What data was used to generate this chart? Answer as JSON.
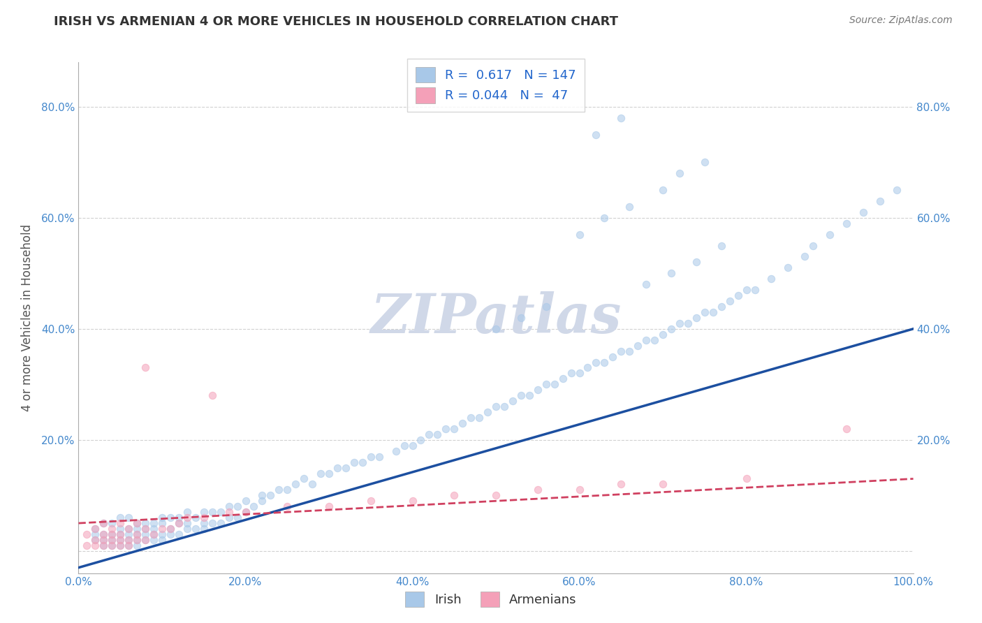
{
  "title": "IRISH VS ARMENIAN 4 OR MORE VEHICLES IN HOUSEHOLD CORRELATION CHART",
  "source": "Source: ZipAtlas.com",
  "ylabel": "4 or more Vehicles in Household",
  "xlabel_irish": "Irish",
  "xlabel_armenian": "Armenians",
  "legend_irish_R": "0.617",
  "legend_irish_N": "147",
  "legend_armenian_R": "0.044",
  "legend_armenian_N": "47",
  "irish_color": "#a8c8e8",
  "armenian_color": "#f4a0b8",
  "irish_line_color": "#1c4fa0",
  "armenian_line_color": "#d04060",
  "watermark": "ZIPatlas",
  "xlim": [
    0.0,
    1.0
  ],
  "ylim": [
    -0.04,
    0.88
  ],
  "xticks": [
    0.0,
    0.2,
    0.4,
    0.6,
    0.8,
    1.0
  ],
  "yticks": [
    0.0,
    0.2,
    0.4,
    0.6,
    0.8
  ],
  "xtick_labels": [
    "0.0%",
    "20.0%",
    "40.0%",
    "60.0%",
    "80.0%",
    "100.0%"
  ],
  "ytick_labels": [
    "",
    "20.0%",
    "40.0%",
    "60.0%",
    "80.0%"
  ],
  "background_color": "#ffffff",
  "grid_color": "#cccccc",
  "title_color": "#333333",
  "axis_label_color": "#555555",
  "tick_label_color": "#4488cc",
  "watermark_color": "#d0d8e8",
  "marker_size": 55,
  "marker_alpha": 0.55,
  "legend_text_color": "#2266cc",
  "irish_scatter_x": [
    0.02,
    0.02,
    0.02,
    0.03,
    0.03,
    0.03,
    0.03,
    0.04,
    0.04,
    0.04,
    0.04,
    0.05,
    0.05,
    0.05,
    0.05,
    0.05,
    0.06,
    0.06,
    0.06,
    0.06,
    0.06,
    0.07,
    0.07,
    0.07,
    0.07,
    0.07,
    0.08,
    0.08,
    0.08,
    0.08,
    0.09,
    0.09,
    0.09,
    0.09,
    0.1,
    0.1,
    0.1,
    0.1,
    0.11,
    0.11,
    0.11,
    0.12,
    0.12,
    0.12,
    0.13,
    0.13,
    0.13,
    0.14,
    0.14,
    0.15,
    0.15,
    0.15,
    0.16,
    0.16,
    0.17,
    0.17,
    0.18,
    0.18,
    0.19,
    0.19,
    0.2,
    0.2,
    0.21,
    0.22,
    0.22,
    0.23,
    0.24,
    0.25,
    0.26,
    0.27,
    0.28,
    0.29,
    0.3,
    0.31,
    0.32,
    0.33,
    0.34,
    0.35,
    0.36,
    0.38,
    0.39,
    0.4,
    0.41,
    0.42,
    0.43,
    0.44,
    0.45,
    0.46,
    0.47,
    0.48,
    0.49,
    0.5,
    0.51,
    0.52,
    0.53,
    0.54,
    0.55,
    0.56,
    0.57,
    0.58,
    0.59,
    0.6,
    0.61,
    0.62,
    0.63,
    0.64,
    0.65,
    0.66,
    0.67,
    0.68,
    0.69,
    0.7,
    0.71,
    0.72,
    0.73,
    0.74,
    0.75,
    0.76,
    0.77,
    0.78,
    0.79,
    0.8,
    0.81,
    0.83,
    0.85,
    0.87,
    0.88,
    0.9,
    0.92,
    0.94,
    0.96,
    0.98,
    0.5,
    0.53,
    0.56,
    0.6,
    0.63,
    0.66,
    0.7,
    0.72,
    0.75,
    0.62,
    0.65,
    0.68,
    0.71,
    0.74,
    0.77
  ],
  "irish_scatter_y": [
    0.02,
    0.03,
    0.04,
    0.01,
    0.02,
    0.03,
    0.05,
    0.01,
    0.02,
    0.03,
    0.05,
    0.01,
    0.02,
    0.03,
    0.04,
    0.06,
    0.01,
    0.02,
    0.03,
    0.04,
    0.06,
    0.01,
    0.02,
    0.03,
    0.04,
    0.05,
    0.02,
    0.03,
    0.04,
    0.05,
    0.02,
    0.03,
    0.04,
    0.05,
    0.02,
    0.03,
    0.05,
    0.06,
    0.03,
    0.04,
    0.06,
    0.03,
    0.05,
    0.06,
    0.04,
    0.05,
    0.07,
    0.04,
    0.06,
    0.04,
    0.05,
    0.07,
    0.05,
    0.07,
    0.05,
    0.07,
    0.06,
    0.08,
    0.06,
    0.08,
    0.07,
    0.09,
    0.08,
    0.09,
    0.1,
    0.1,
    0.11,
    0.11,
    0.12,
    0.13,
    0.12,
    0.14,
    0.14,
    0.15,
    0.15,
    0.16,
    0.16,
    0.17,
    0.17,
    0.18,
    0.19,
    0.19,
    0.2,
    0.21,
    0.21,
    0.22,
    0.22,
    0.23,
    0.24,
    0.24,
    0.25,
    0.26,
    0.26,
    0.27,
    0.28,
    0.28,
    0.29,
    0.3,
    0.3,
    0.31,
    0.32,
    0.32,
    0.33,
    0.34,
    0.34,
    0.35,
    0.36,
    0.36,
    0.37,
    0.38,
    0.38,
    0.39,
    0.4,
    0.41,
    0.41,
    0.42,
    0.43,
    0.43,
    0.44,
    0.45,
    0.46,
    0.47,
    0.47,
    0.49,
    0.51,
    0.53,
    0.55,
    0.57,
    0.59,
    0.61,
    0.63,
    0.65,
    0.4,
    0.42,
    0.44,
    0.57,
    0.6,
    0.62,
    0.65,
    0.68,
    0.7,
    0.75,
    0.78,
    0.48,
    0.5,
    0.52,
    0.55
  ],
  "armenian_scatter_x": [
    0.01,
    0.01,
    0.02,
    0.02,
    0.02,
    0.03,
    0.03,
    0.03,
    0.03,
    0.04,
    0.04,
    0.04,
    0.04,
    0.05,
    0.05,
    0.05,
    0.05,
    0.06,
    0.06,
    0.06,
    0.07,
    0.07,
    0.07,
    0.08,
    0.08,
    0.09,
    0.1,
    0.11,
    0.12,
    0.13,
    0.15,
    0.18,
    0.2,
    0.25,
    0.3,
    0.35,
    0.4,
    0.45,
    0.5,
    0.55,
    0.6,
    0.65,
    0.7,
    0.8,
    0.92,
    0.08,
    0.16
  ],
  "armenian_scatter_y": [
    0.01,
    0.03,
    0.01,
    0.02,
    0.04,
    0.01,
    0.02,
    0.03,
    0.05,
    0.01,
    0.02,
    0.03,
    0.04,
    0.01,
    0.02,
    0.03,
    0.05,
    0.01,
    0.02,
    0.04,
    0.02,
    0.03,
    0.05,
    0.02,
    0.04,
    0.03,
    0.04,
    0.04,
    0.05,
    0.06,
    0.06,
    0.07,
    0.07,
    0.08,
    0.08,
    0.09,
    0.09,
    0.1,
    0.1,
    0.11,
    0.11,
    0.12,
    0.12,
    0.13,
    0.22,
    0.33,
    0.28
  ]
}
